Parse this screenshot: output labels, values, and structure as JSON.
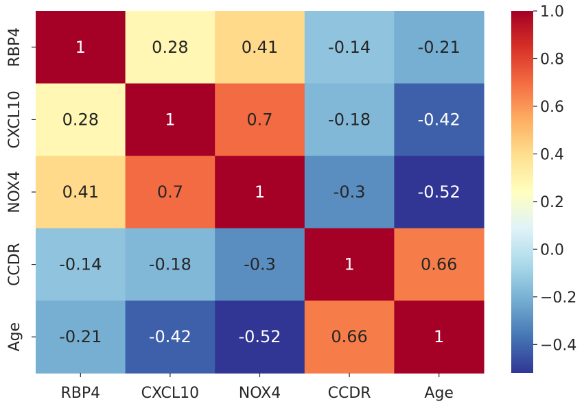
{
  "chart_data": {
    "type": "heatmap",
    "title": "",
    "xlabel": "",
    "ylabel": "",
    "x_categories": [
      "RBP4",
      "CXCL10",
      "NOX4",
      "CCDR",
      "Age"
    ],
    "y_categories": [
      "RBP4",
      "CXCL10",
      "NOX4",
      "CCDR",
      "Age"
    ],
    "values": [
      [
        1,
        0.28,
        0.41,
        -0.14,
        -0.21
      ],
      [
        0.28,
        1,
        0.7,
        -0.18,
        -0.42
      ],
      [
        0.41,
        0.7,
        1,
        -0.3,
        -0.52
      ],
      [
        -0.14,
        -0.18,
        -0.3,
        1,
        0.66
      ],
      [
        -0.21,
        -0.42,
        -0.52,
        0.66,
        1
      ]
    ],
    "annotations": [
      [
        "1",
        "0.28",
        "0.41",
        "-0.14",
        "-0.21"
      ],
      [
        "0.28",
        "1",
        "0.7",
        "-0.18",
        "-0.42"
      ],
      [
        "0.41",
        "0.7",
        "1",
        "-0.3",
        "-0.52"
      ],
      [
        "-0.14",
        "-0.18",
        "-0.3",
        "1",
        "0.66"
      ],
      [
        "-0.21",
        "-0.42",
        "-0.52",
        "0.66",
        "1"
      ]
    ],
    "colormap": "RdYlBu_r",
    "colorbar": {
      "vmin": -0.52,
      "vmax": 1.0,
      "ticks": [
        1.0,
        0.8,
        0.6,
        0.4,
        0.2,
        0.0,
        -0.2,
        -0.4
      ],
      "tick_labels": [
        "1.0",
        "0.8",
        "0.6",
        "0.4",
        "0.2",
        "0.0",
        "−0.2",
        "−0.4"
      ]
    },
    "colormap_stops": [
      "#313695",
      "#4575b4",
      "#74add1",
      "#abd9e9",
      "#e0f3f8",
      "#ffffbf",
      "#fee090",
      "#fdae61",
      "#f46d43",
      "#d73027",
      "#a50026"
    ]
  }
}
